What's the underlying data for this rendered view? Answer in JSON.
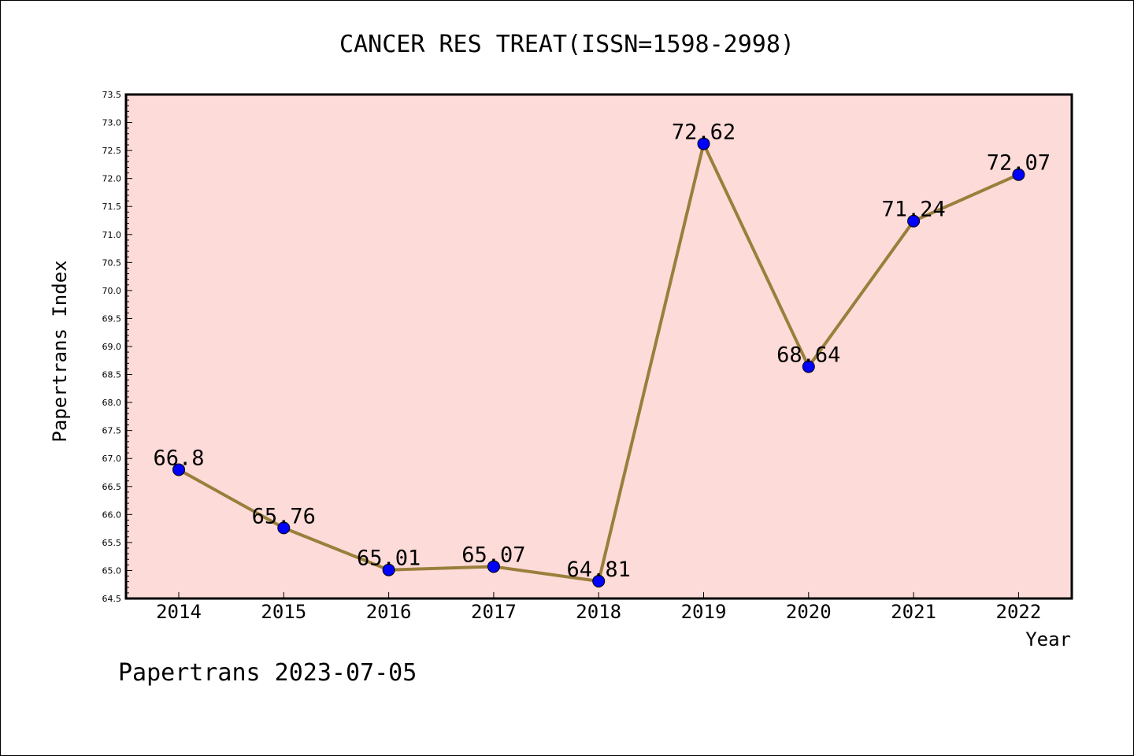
{
  "chart_data": {
    "type": "line",
    "title": "CANCER RES TREAT(ISSN=1598-2998)",
    "xlabel": "Year",
    "ylabel": "Papertrans Index",
    "categories": [
      "2014",
      "2015",
      "2016",
      "2017",
      "2018",
      "2019",
      "2020",
      "2021",
      "2022"
    ],
    "series": [
      {
        "values": [
          66.8,
          65.76,
          65.01,
          65.07,
          64.81,
          72.62,
          68.64,
          71.24,
          72.07
        ]
      }
    ],
    "data_labels": [
      "66.8",
      "65.76",
      "65.01",
      "65.07",
      "64.81",
      "72.62",
      "68.64",
      "71.24",
      "72.07"
    ],
    "ylim": [
      64.5,
      73.5
    ],
    "yticks": [
      "64.5",
      "65.0",
      "65.5",
      "66.0",
      "66.5",
      "67.0",
      "67.5",
      "68.0",
      "68.5",
      "69.0",
      "69.5",
      "70.0",
      "70.5",
      "71.0",
      "71.5",
      "72.0",
      "72.5",
      "73.0",
      "73.5"
    ],
    "grid": false,
    "colors": {
      "plot_background": "#fddbd9",
      "line": "#9a7f3c",
      "marker": "#0000ff"
    }
  },
  "footer": "Papertrans 2023-07-05"
}
